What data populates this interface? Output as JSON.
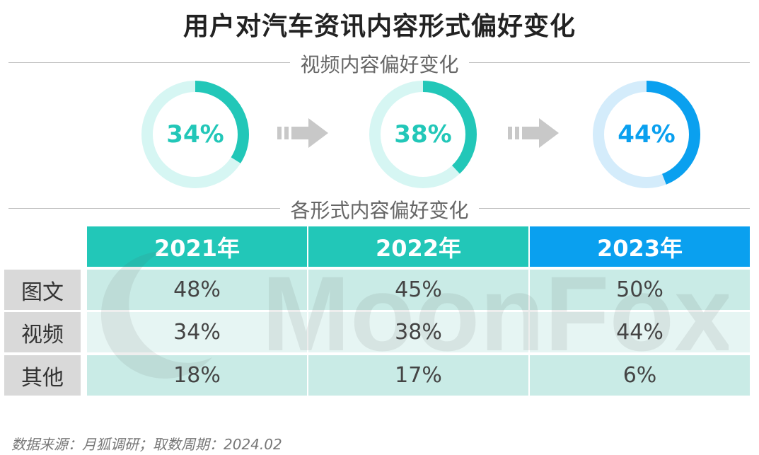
{
  "title": "用户对汽车资讯内容形式偏好变化",
  "section1_label": "视频内容偏好变化",
  "section2_label": "各形式内容偏好变化",
  "colors": {
    "teal": "#22c7b8",
    "teal_light": "#d6f6f3",
    "blue": "#0aa0ef",
    "blue_light": "#d4ecfb",
    "row_odd": "#c9ebe6",
    "row_even": "#e6f5f3",
    "label_bg": "#d9d9d9"
  },
  "watermark": "MoonFox",
  "chart_data": [
    {
      "type": "pie",
      "title": "视频内容偏好变化",
      "series": [
        {
          "label": "34%",
          "value": 34,
          "color": "#22c7b8"
        },
        {
          "label": "38%",
          "value": 38,
          "color": "#22c7b8"
        },
        {
          "label": "44%",
          "value": 44,
          "color": "#0aa0ef"
        }
      ]
    },
    {
      "type": "table",
      "title": "各形式内容偏好变化",
      "columns": [
        "2021年",
        "2022年",
        "2023年"
      ],
      "rows": [
        {
          "label": "图文",
          "values": [
            "48%",
            "45%",
            "50%"
          ]
        },
        {
          "label": "视频",
          "values": [
            "34%",
            "38%",
            "44%"
          ]
        },
        {
          "label": "其他",
          "values": [
            "18%",
            "17%",
            "6%"
          ]
        }
      ]
    }
  ],
  "source": "数据来源：月狐调研；取数周期：2024.02"
}
